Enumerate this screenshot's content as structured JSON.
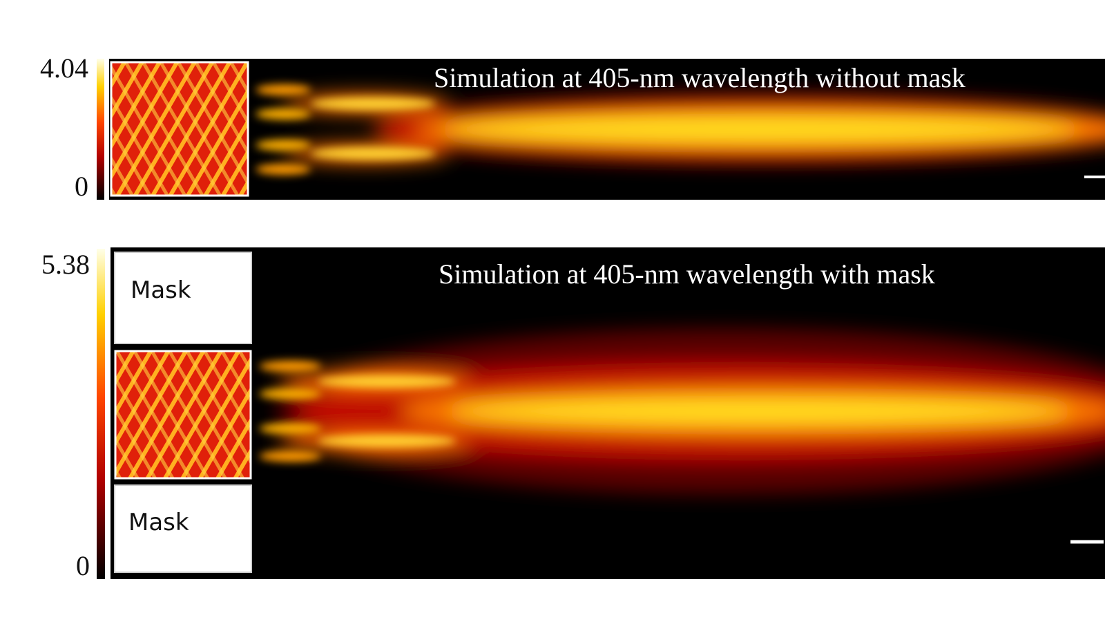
{
  "panels": [
    {
      "title": "Simulation at 405-nm wavelength without mask",
      "colorbar": {
        "max": 4.04,
        "min": 0
      }
    },
    {
      "title": "Simulation at 405-nm wavelength with mask",
      "colorbar": {
        "max": 5.38,
        "min": 0
      },
      "mask_labels": [
        "Mask",
        "Mask"
      ]
    }
  ]
}
